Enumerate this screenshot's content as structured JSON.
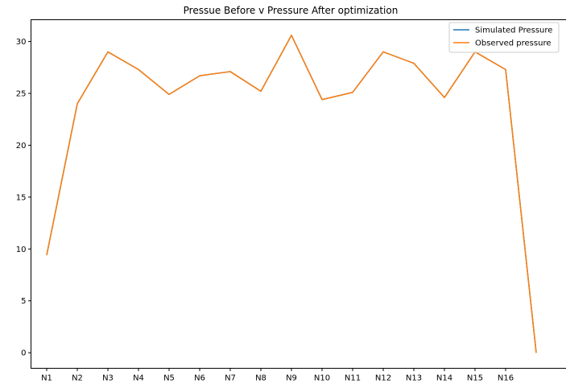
{
  "chart_data": {
    "type": "line",
    "title": "Pressue Before v Pressure After optimization",
    "xlabel": "",
    "ylabel": "",
    "x_tick_labels": [
      "N1",
      "N2",
      "N3",
      "N4",
      "N5",
      "N6",
      "N7",
      "N8",
      "N9",
      "N10",
      "N11",
      "N12",
      "N13",
      "N14",
      "N15",
      "N16"
    ],
    "n_points": 17,
    "y_ticks": [
      0,
      5,
      10,
      15,
      20,
      25,
      30
    ],
    "ylim": [
      -1.5,
      32.1
    ],
    "grid": false,
    "legend_position": "top-right",
    "series": [
      {
        "name": "Simulated Pressure",
        "color": "#1f77b4",
        "values": [
          9.4,
          24.0,
          29.0,
          27.3,
          24.9,
          26.7,
          27.1,
          25.2,
          30.6,
          24.4,
          25.1,
          29.0,
          27.9,
          24.6,
          29.0,
          27.3,
          0.0
        ]
      },
      {
        "name": "Observed pressure",
        "color": "#ff7f0e",
        "values": [
          9.4,
          24.0,
          29.0,
          27.3,
          24.9,
          26.7,
          27.1,
          25.2,
          30.6,
          24.4,
          25.1,
          29.0,
          27.9,
          24.6,
          29.0,
          27.3,
          0.0
        ]
      }
    ]
  }
}
